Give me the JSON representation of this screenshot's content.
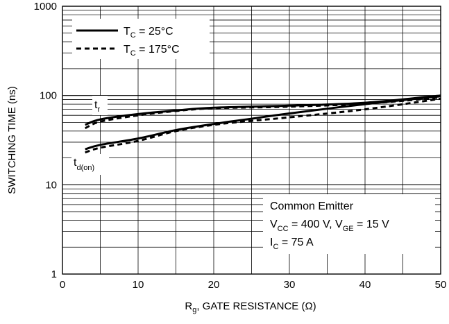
{
  "chart_data": {
    "type": "line",
    "xlabel": {
      "main": "R",
      "sub": "g",
      "rest": ", GATE RESISTANCE (Ω)"
    },
    "ylabel": "SWITCHING TIME (ns)",
    "xlim": [
      0,
      50
    ],
    "ylim": [
      1,
      1000
    ],
    "yscale": "log",
    "grid": true,
    "x_ticks": [
      "0",
      "10",
      "20",
      "30",
      "40",
      "50"
    ],
    "y_ticks": [
      "1",
      "10",
      "100",
      "1000"
    ],
    "legend": {
      "placement": "top-left",
      "entries": [
        {
          "main": "T",
          "sub": "C",
          "rest": " = 25°C",
          "style": "solid"
        },
        {
          "main": "T",
          "sub": "C",
          "rest": " = 175°C",
          "style": "dashed"
        }
      ]
    },
    "annotations": {
      "tr": {
        "main": "t",
        "sub": "r"
      },
      "tdon": {
        "main": "t",
        "sub": "d(on)"
      },
      "conditions": [
        {
          "parts": [
            {
              "t": "Common Emitter"
            }
          ]
        },
        {
          "parts": [
            {
              "t": "V"
            },
            {
              "t": "CC",
              "sub": true
            },
            {
              "t": " = 400 V, V"
            },
            {
              "t": "GE",
              "sub": true
            },
            {
              "t": " = 15 V"
            }
          ]
        },
        {
          "parts": [
            {
              "t": "I"
            },
            {
              "t": "C",
              "sub": true
            },
            {
              "t": " = 75 A"
            }
          ]
        }
      ]
    },
    "series": [
      {
        "name": "tr, TC = 25°C",
        "style": "solid",
        "x": [
          3,
          5,
          10,
          15,
          20,
          30,
          40,
          50
        ],
        "y": [
          47,
          54,
          62,
          68,
          73,
          77,
          83,
          100
        ]
      },
      {
        "name": "tr, TC = 175°C",
        "style": "dashed",
        "x": [
          3,
          5,
          10,
          15,
          20,
          30,
          40,
          50
        ],
        "y": [
          43,
          51,
          60,
          67,
          72,
          75,
          81,
          95
        ]
      },
      {
        "name": "td(on), TC = 25°C",
        "style": "solid",
        "x": [
          3,
          5,
          10,
          15,
          20,
          25,
          30,
          40,
          50
        ],
        "y": [
          25,
          28,
          33,
          41,
          48,
          55,
          63,
          80,
          98
        ]
      },
      {
        "name": "td(on), TC = 175°C",
        "style": "dashed",
        "x": [
          3,
          5,
          10,
          15,
          20,
          25,
          30,
          40,
          50
        ],
        "y": [
          23,
          26,
          31,
          40,
          47,
          52,
          57,
          70,
          92
        ]
      }
    ]
  }
}
